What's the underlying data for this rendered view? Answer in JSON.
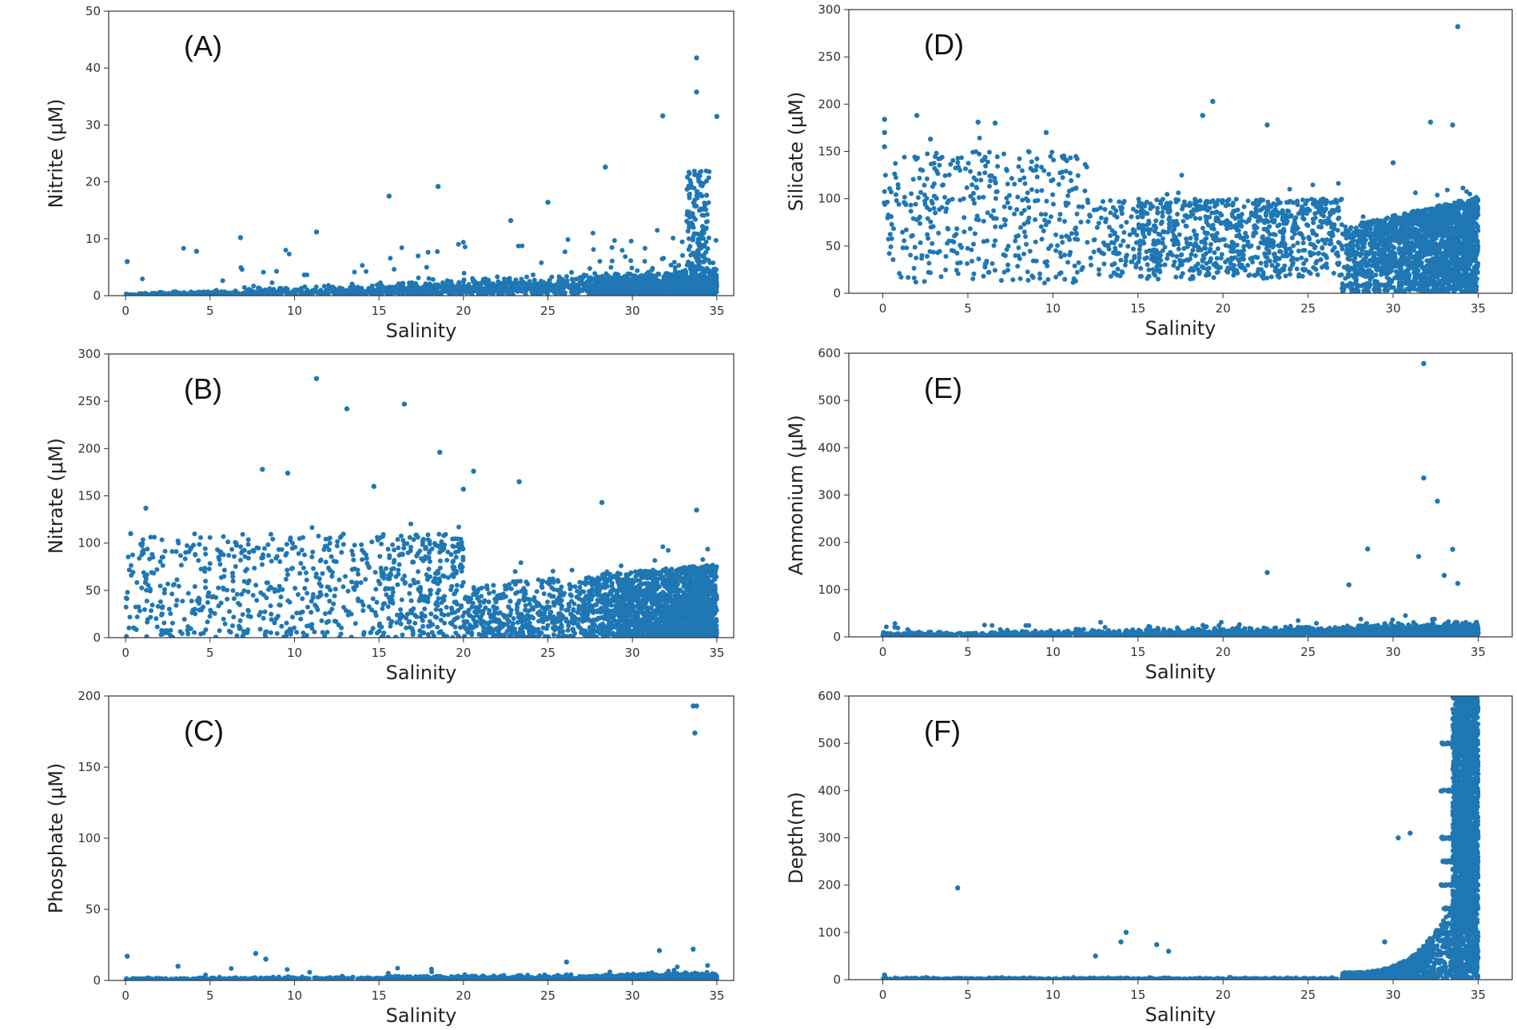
{
  "chart_data": [
    {
      "id": "A",
      "type": "scatter",
      "panel_label": "(A)",
      "xlabel": "Salinity",
      "ylabel": "Nitrite (μM)",
      "xlim": [
        -1,
        36
      ],
      "ylim": [
        0,
        50
      ],
      "xticks": [
        0,
        5,
        10,
        15,
        20,
        25,
        30,
        35
      ],
      "yticks": [
        0,
        10,
        20,
        30,
        40,
        50
      ],
      "color": "#1f77b4",
      "notable_points": [
        [
          33.8,
          41.8
        ],
        [
          33.8,
          35.8
        ],
        [
          35.0,
          31.5
        ],
        [
          31.8,
          31.6
        ],
        [
          28.4,
          22.6
        ],
        [
          18.5,
          19.2
        ],
        [
          15.6,
          17.5
        ],
        [
          25.0,
          16.4
        ],
        [
          22.8,
          13.2
        ],
        [
          6.8,
          10.2
        ],
        [
          11.3,
          11.2
        ],
        [
          0.1,
          6.0
        ],
        [
          4.2,
          7.8
        ]
      ],
      "bulk": {
        "n": 2600,
        "x_range": [
          0,
          35
        ],
        "trend": "floor rising from ~1 at low salinity to ~5 near 34, dense spike to ~28 at 34"
      }
    },
    {
      "id": "B",
      "type": "scatter",
      "panel_label": "(B)",
      "xlabel": "Salinity",
      "ylabel": "Nitrate (μM)",
      "xlim": [
        -1,
        36
      ],
      "ylim": [
        0,
        300
      ],
      "xticks": [
        0,
        5,
        10,
        15,
        20,
        25,
        30,
        35
      ],
      "yticks": [
        0,
        50,
        100,
        150,
        200,
        250,
        300
      ],
      "color": "#1f77b4",
      "notable_points": [
        [
          11.3,
          274
        ],
        [
          16.5,
          247
        ],
        [
          13.1,
          242
        ],
        [
          18.6,
          196
        ],
        [
          8.1,
          178
        ],
        [
          9.6,
          174
        ],
        [
          20.6,
          176
        ],
        [
          23.3,
          165
        ],
        [
          20.0,
          157
        ],
        [
          14.7,
          160
        ],
        [
          28.2,
          143
        ],
        [
          33.8,
          135
        ],
        [
          0.3,
          110
        ],
        [
          1.2,
          137
        ]
      ],
      "bulk": {
        "n": 3200,
        "x_range": [
          0,
          35
        ],
        "trend": "dense cloud 0–80 from salinity 18 to 35, sparse scatter 0–130 at lower salinity"
      }
    },
    {
      "id": "C",
      "type": "scatter",
      "panel_label": "(C)",
      "xlabel": "Salinity",
      "ylabel": "Phosphate (μM)",
      "xlim": [
        -1,
        36
      ],
      "ylim": [
        0,
        200
      ],
      "xticks": [
        0,
        5,
        10,
        15,
        20,
        25,
        30,
        35
      ],
      "yticks": [
        0,
        50,
        100,
        150,
        200
      ],
      "color": "#1f77b4",
      "notable_points": [
        [
          33.6,
          193
        ],
        [
          33.8,
          193
        ],
        [
          33.7,
          174
        ],
        [
          0.1,
          17
        ],
        [
          7.7,
          19
        ],
        [
          8.3,
          15
        ],
        [
          31.6,
          21
        ],
        [
          33.6,
          22
        ],
        [
          26.1,
          13
        ],
        [
          3.1,
          10
        ]
      ],
      "bulk": {
        "n": 2200,
        "x_range": [
          0,
          35
        ],
        "trend": "band 0–5 rising slightly to ~8 near 34"
      }
    },
    {
      "id": "D",
      "type": "scatter",
      "panel_label": "(D)",
      "xlabel": "Salinity",
      "ylabel": "Silicate (μM)",
      "xlim": [
        -2,
        37
      ],
      "ylim": [
        0,
        300
      ],
      "xticks": [
        0,
        5,
        10,
        15,
        20,
        25,
        30,
        35
      ],
      "yticks": [
        0,
        50,
        100,
        150,
        200,
        250,
        300
      ],
      "color": "#1f77b4",
      "notable_points": [
        [
          33.8,
          282
        ],
        [
          19.4,
          203
        ],
        [
          18.8,
          188
        ],
        [
          2.0,
          188
        ],
        [
          0.1,
          184
        ],
        [
          0.1,
          170
        ],
        [
          9.6,
          170
        ],
        [
          22.6,
          178
        ],
        [
          5.6,
          181
        ],
        [
          6.6,
          180
        ],
        [
          32.2,
          181
        ],
        [
          33.5,
          178
        ],
        [
          0.1,
          155
        ],
        [
          2.8,
          163
        ],
        [
          30.0,
          138
        ]
      ],
      "bulk": {
        "n": 3400,
        "x_range": [
          0,
          35
        ],
        "trend": "diffuse cloud 20–100 at mid salinity, dense block 0–100 from 27 to 35"
      }
    },
    {
      "id": "E",
      "type": "scatter",
      "panel_label": "(E)",
      "xlabel": "Salinity",
      "ylabel": "Ammonium (μM)",
      "xlim": [
        -2,
        37
      ],
      "ylim": [
        0,
        600
      ],
      "xticks": [
        0,
        5,
        10,
        15,
        20,
        25,
        30,
        35
      ],
      "yticks": [
        0,
        100,
        200,
        300,
        400,
        500,
        600
      ],
      "color": "#1f77b4",
      "notable_points": [
        [
          31.8,
          578
        ],
        [
          31.8,
          336
        ],
        [
          32.6,
          287
        ],
        [
          28.5,
          186
        ],
        [
          33.5,
          185
        ],
        [
          31.5,
          170
        ],
        [
          22.6,
          136
        ],
        [
          33.0,
          130
        ],
        [
          27.4,
          110
        ],
        [
          33.8,
          113
        ]
      ],
      "bulk": {
        "n": 2800,
        "x_range": [
          0,
          35
        ],
        "trend": "band 0–40 rising to ~70 near 32–34"
      }
    },
    {
      "id": "F",
      "type": "scatter",
      "panel_label": "(F)",
      "xlabel": "Salinity",
      "ylabel": "Depth(m)",
      "xlim": [
        -2,
        37
      ],
      "ylim": [
        0,
        600
      ],
      "xticks": [
        0,
        5,
        10,
        15,
        20,
        25,
        30,
        35
      ],
      "yticks": [
        0,
        100,
        200,
        300,
        400,
        500,
        600
      ],
      "color": "#1f77b4",
      "notable_points": [
        [
          4.4,
          194
        ],
        [
          14.3,
          100
        ],
        [
          14.0,
          80
        ],
        [
          16.1,
          74
        ],
        [
          16.8,
          60
        ],
        [
          12.5,
          50
        ],
        [
          0.1,
          10
        ],
        [
          30.3,
          300
        ],
        [
          31.0,
          310
        ],
        [
          29.5,
          80
        ]
      ],
      "bulk": {
        "n": 4000,
        "x_range": [
          0,
          35
        ],
        "trend": "near zero to salinity 20, rising curve to full depth at 33.5–35 with horizontal bands at 100, 150, 200, 250, 300, 400, 500 m"
      }
    }
  ]
}
